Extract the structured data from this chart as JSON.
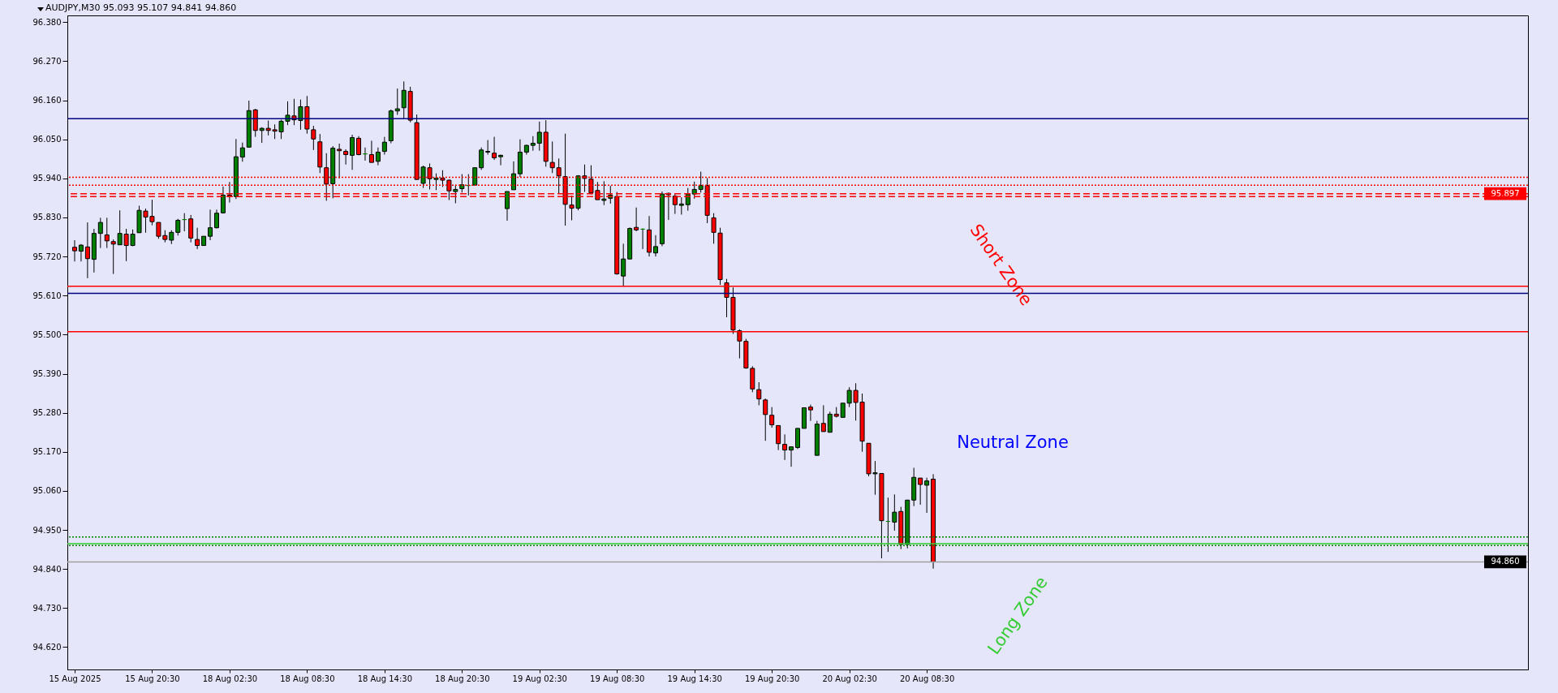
{
  "chart_data": {
    "type": "candlestick",
    "title": "AUDJPY,M30 95.093 95.107 94.841 94.860",
    "categories": [
      "15 Aug 2025",
      null,
      null,
      null,
      null,
      null,
      null,
      null,
      null,
      null,
      null,
      null,
      "15 Aug 20:30",
      null,
      null,
      null,
      null,
      null,
      null,
      null,
      null,
      null,
      null,
      null,
      "18 Aug 02:30",
      null,
      null,
      null,
      null,
      null,
      null,
      null,
      null,
      null,
      null,
      null,
      "18 Aug 08:30",
      null,
      null,
      null,
      null,
      null,
      null,
      null,
      null,
      null,
      null,
      null,
      "18 Aug 14:30",
      null,
      null,
      null,
      null,
      null,
      null,
      null,
      null,
      null,
      null,
      null,
      "18 Aug 20:30",
      null,
      null,
      null,
      null,
      null,
      null,
      null,
      null,
      null,
      null,
      null,
      "19 Aug 02:30",
      null,
      null,
      null,
      null,
      null,
      null,
      null,
      null,
      null,
      null,
      null,
      "19 Aug 08:30",
      null,
      null,
      null,
      null,
      null,
      null,
      null,
      null,
      null,
      null,
      null,
      "19 Aug 14:30",
      null,
      null,
      null,
      null,
      null,
      null,
      null,
      null,
      null,
      null,
      null,
      "19 Aug 20:30",
      null,
      null,
      null,
      null,
      null,
      null,
      null,
      null,
      null,
      null,
      null,
      "20 Aug 02:30",
      null,
      null,
      null,
      null,
      null,
      null,
      null,
      null,
      null,
      null,
      null,
      "20 Aug 08:30",
      null
    ],
    "ohlc": [
      [
        95.746,
        95.766,
        95.706,
        95.736
      ],
      [
        95.735,
        95.755,
        95.706,
        95.752
      ],
      [
        95.747,
        95.816,
        95.659,
        95.714
      ],
      [
        95.712,
        95.798,
        95.675,
        95.785
      ],
      [
        95.785,
        95.829,
        95.744,
        95.816
      ],
      [
        95.781,
        95.829,
        95.744,
        95.764
      ],
      [
        95.762,
        95.768,
        95.671,
        95.755
      ],
      [
        95.753,
        95.85,
        95.753,
        95.785
      ],
      [
        95.783,
        95.798,
        95.707,
        95.751
      ],
      [
        95.751,
        95.796,
        95.749,
        95.783
      ],
      [
        95.787,
        95.863,
        95.787,
        95.85
      ],
      [
        95.848,
        95.855,
        95.787,
        95.831
      ],
      [
        95.833,
        95.88,
        95.808,
        95.818
      ],
      [
        95.816,
        95.816,
        95.77,
        95.777
      ],
      [
        95.779,
        95.794,
        95.76,
        95.768
      ],
      [
        95.766,
        95.794,
        95.755,
        95.788
      ],
      [
        95.788,
        95.826,
        95.779,
        95.822
      ],
      [
        95.824,
        95.842,
        95.791,
        95.824
      ],
      [
        95.826,
        95.837,
        95.76,
        95.772
      ],
      [
        95.768,
        95.801,
        95.741,
        95.751
      ],
      [
        95.751,
        95.777,
        95.751,
        95.777
      ],
      [
        95.777,
        95.852,
        95.766,
        95.801
      ],
      [
        95.801,
        95.852,
        95.799,
        95.842
      ],
      [
        95.843,
        95.917,
        95.841,
        95.893
      ],
      [
        95.893,
        95.93,
        95.872,
        95.889
      ],
      [
        95.889,
        96.051,
        95.882,
        96.001
      ],
      [
        96.0,
        96.041,
        95.987,
        96.026
      ],
      [
        96.028,
        96.159,
        96.028,
        96.131
      ],
      [
        96.133,
        96.136,
        96.057,
        96.075
      ],
      [
        96.075,
        96.084,
        96.04,
        96.081
      ],
      [
        96.081,
        96.103,
        96.061,
        96.075
      ],
      [
        96.077,
        96.092,
        96.051,
        96.073
      ],
      [
        96.071,
        96.105,
        96.051,
        96.101
      ],
      [
        96.101,
        96.157,
        96.09,
        96.118
      ],
      [
        96.116,
        96.164,
        96.09,
        96.105
      ],
      [
        96.103,
        96.162,
        96.077,
        96.142
      ],
      [
        96.142,
        96.172,
        96.066,
        96.079
      ],
      [
        96.077,
        96.088,
        96.02,
        96.051
      ],
      [
        96.043,
        96.065,
        95.955,
        95.972
      ],
      [
        95.97,
        96.011,
        95.877,
        95.924
      ],
      [
        95.925,
        96.031,
        95.884,
        96.025
      ],
      [
        96.022,
        96.038,
        95.94,
        96.018
      ],
      [
        96.016,
        96.022,
        95.979,
        96.007
      ],
      [
        96.005,
        96.063,
        95.964,
        96.055
      ],
      [
        96.053,
        96.059,
        96.005,
        96.007
      ],
      [
        96.009,
        96.027,
        95.99,
        96.009
      ],
      [
        96.007,
        96.046,
        95.985,
        95.985
      ],
      [
        95.988,
        96.027,
        95.977,
        96.014
      ],
      [
        96.016,
        96.057,
        96.007,
        96.042
      ],
      [
        96.046,
        96.134,
        96.039,
        96.13
      ],
      [
        96.13,
        96.193,
        96.119,
        96.136
      ],
      [
        96.139,
        96.213,
        96.108,
        96.188
      ],
      [
        96.185,
        96.198,
        96.098,
        96.104
      ],
      [
        96.097,
        96.12,
        95.937,
        95.937
      ],
      [
        95.926,
        95.976,
        95.913,
        95.972
      ],
      [
        95.97,
        95.982,
        95.909,
        95.939
      ],
      [
        95.937,
        95.954,
        95.907,
        95.941
      ],
      [
        95.941,
        95.963,
        95.916,
        95.935
      ],
      [
        95.935,
        95.937,
        95.879,
        95.905
      ],
      [
        95.903,
        95.922,
        95.87,
        95.909
      ],
      [
        95.911,
        95.952,
        95.9,
        95.922
      ],
      [
        95.92,
        95.952,
        95.892,
        95.92
      ],
      [
        95.921,
        95.97,
        95.921,
        95.97
      ],
      [
        95.97,
        96.027,
        95.964,
        96.02
      ],
      [
        96.014,
        96.048,
        96.007,
        96.016
      ],
      [
        96.011,
        96.057,
        95.992,
        95.998
      ],
      [
        96.001,
        96.007,
        95.977,
        96.005
      ],
      [
        95.855,
        95.903,
        95.821,
        95.903
      ],
      [
        95.908,
        95.988,
        95.908,
        95.953
      ],
      [
        95.953,
        96.05,
        95.944,
        96.014
      ],
      [
        96.014,
        96.035,
        96.007,
        96.033
      ],
      [
        96.033,
        96.059,
        96.018,
        96.039
      ],
      [
        96.039,
        96.1,
        96.018,
        96.07
      ],
      [
        96.07,
        96.104,
        95.973,
        95.988
      ],
      [
        95.985,
        96.044,
        95.955,
        95.97
      ],
      [
        95.97,
        95.996,
        95.897,
        95.947
      ],
      [
        95.945,
        96.066,
        95.807,
        95.867
      ],
      [
        95.865,
        95.891,
        95.822,
        95.856
      ],
      [
        95.856,
        95.949,
        95.85,
        95.947
      ],
      [
        95.947,
        95.979,
        95.902,
        95.94
      ],
      [
        95.938,
        95.977,
        95.895,
        95.899
      ],
      [
        95.906,
        95.93,
        95.88,
        95.88
      ],
      [
        95.878,
        95.932,
        95.865,
        95.882
      ],
      [
        95.884,
        95.919,
        95.869,
        95.893
      ],
      [
        95.889,
        95.902,
        95.669,
        95.671
      ],
      [
        95.665,
        95.756,
        95.635,
        95.713
      ],
      [
        95.713,
        95.802,
        95.713,
        95.799
      ],
      [
        95.802,
        95.858,
        95.791,
        95.795
      ],
      [
        95.797,
        95.799,
        95.741,
        95.797
      ],
      [
        95.795,
        95.834,
        95.72,
        95.732
      ],
      [
        95.73,
        95.78,
        95.72,
        95.748
      ],
      [
        95.756,
        95.903,
        95.749,
        95.896
      ],
      [
        95.898,
        95.9,
        95.823,
        95.894
      ],
      [
        95.89,
        95.898,
        95.84,
        95.866
      ],
      [
        95.864,
        95.887,
        95.838,
        95.868
      ],
      [
        95.866,
        95.913,
        95.849,
        95.896
      ],
      [
        95.896,
        95.931,
        95.883,
        95.909
      ],
      [
        95.909,
        95.959,
        95.9,
        95.92
      ],
      [
        95.92,
        95.941,
        95.814,
        95.836
      ],
      [
        95.829,
        95.842,
        95.756,
        95.788
      ],
      [
        95.786,
        95.801,
        95.64,
        95.655
      ],
      [
        95.646,
        95.657,
        95.549,
        95.605
      ],
      [
        95.605,
        95.633,
        95.502,
        95.513
      ],
      [
        95.511,
        95.515,
        95.433,
        95.482
      ],
      [
        95.481,
        95.488,
        95.404,
        95.406
      ],
      [
        95.405,
        95.411,
        95.338,
        95.347
      ],
      [
        95.345,
        95.366,
        95.301,
        95.319
      ],
      [
        95.316,
        95.32,
        95.201,
        95.275
      ],
      [
        95.273,
        95.296,
        95.238,
        95.246
      ],
      [
        95.244,
        95.244,
        95.175,
        95.193
      ],
      [
        95.191,
        95.219,
        95.147,
        95.175
      ],
      [
        95.175,
        95.184,
        95.128,
        95.184
      ],
      [
        95.182,
        95.236,
        95.178,
        95.236
      ],
      [
        95.236,
        95.294,
        95.236,
        95.294
      ],
      [
        95.296,
        95.303,
        95.257,
        95.288
      ],
      [
        95.16,
        95.257,
        95.16,
        95.248
      ],
      [
        95.25,
        95.301,
        95.227,
        95.227
      ],
      [
        95.225,
        95.283,
        95.225,
        95.276
      ],
      [
        95.276,
        95.296,
        95.267,
        95.27
      ],
      [
        95.267,
        95.307,
        95.267,
        95.307
      ],
      [
        95.307,
        95.352,
        95.296,
        95.343
      ],
      [
        95.343,
        95.363,
        95.258,
        95.309
      ],
      [
        95.31,
        95.334,
        95.17,
        95.2
      ],
      [
        95.194,
        95.194,
        95.101,
        95.108
      ],
      [
        95.108,
        95.144,
        95.049,
        95.111
      ],
      [
        95.109,
        95.109,
        94.87,
        94.976
      ],
      [
        94.974,
        95.041,
        94.888,
        94.974
      ],
      [
        94.972,
        95.05,
        94.948,
        95.0
      ],
      [
        95.002,
        95.015,
        94.896,
        94.909
      ],
      [
        94.909,
        95.034,
        94.898,
        95.034
      ],
      [
        95.034,
        95.125,
        95.017,
        95.098
      ],
      [
        95.096,
        95.096,
        95.021,
        95.078
      ],
      [
        95.076,
        95.097,
        94.998,
        95.088
      ],
      [
        95.093,
        95.107,
        94.841,
        94.86
      ]
    ],
    "colors": [
      "#ff0000",
      "#008000",
      "#ff0000",
      "#008000",
      "#008000",
      "#ff0000",
      "#ff0000",
      "#008000",
      "#ff0000",
      "#008000",
      "#008000",
      "#ff0000",
      "#ff0000",
      "#ff0000",
      "#ff0000",
      "#008000",
      "#008000",
      "#008000",
      "#ff0000",
      "#ff0000",
      "#008000",
      "#008000",
      "#008000",
      "#008000",
      "#ff0000",
      "#008000",
      "#008000",
      "#008000",
      "#ff0000",
      "#008000",
      "#ff0000",
      "#ff0000",
      "#008000",
      "#008000",
      "#ff0000",
      "#008000",
      "#ff0000",
      "#ff0000",
      "#ff0000",
      "#ff0000",
      "#008000",
      "#ff0000",
      "#ff0000",
      "#008000",
      "#ff0000",
      "#008000",
      "#ff0000",
      "#008000",
      "#008000",
      "#008000",
      "#008000",
      "#008000",
      "#ff0000",
      "#ff0000",
      "#008000",
      "#ff0000",
      "#008000",
      "#ff0000",
      "#ff0000",
      "#008000",
      "#008000",
      "#008000",
      "#008000",
      "#008000",
      "#008000",
      "#ff0000",
      "#008000",
      "#008000",
      "#008000",
      "#008000",
      "#008000",
      "#008000",
      "#008000",
      "#ff0000",
      "#ff0000",
      "#ff0000",
      "#ff0000",
      "#ff0000",
      "#008000",
      "#ff0000",
      "#ff0000",
      "#ff0000",
      "#008000",
      "#008000",
      "#ff0000",
      "#008000",
      "#008000",
      "#ff0000",
      "#008000",
      "#ff0000",
      "#008000",
      "#008000",
      "#ff0000",
      "#ff0000",
      "#008000",
      "#008000",
      "#008000",
      "#008000",
      "#ff0000",
      "#ff0000",
      "#ff0000",
      "#ff0000",
      "#ff0000",
      "#ff0000",
      "#ff0000",
      "#ff0000",
      "#ff0000",
      "#ff0000",
      "#ff0000",
      "#ff0000",
      "#ff0000",
      "#008000",
      "#008000",
      "#008000",
      "#ff0000",
      "#008000",
      "#ff0000",
      "#008000",
      "#ff0000",
      "#008000",
      "#008000",
      "#ff0000",
      "#ff0000",
      "#ff0000",
      "#008000",
      "#ff0000",
      "#008000",
      "#008000",
      "#ff0000",
      "#008000",
      "#008000",
      "#ff0000",
      "#008000",
      "#ff0000"
    ],
    "ylim": [
      94.557,
      96.399
    ],
    "yticks": [
      {
        "value": 94.62,
        "label": "94.620"
      },
      {
        "value": 94.73,
        "label": "94.730"
      },
      {
        "value": 94.84,
        "label": "94.840"
      },
      {
        "value": 94.95,
        "label": "94.950"
      },
      {
        "value": 95.06,
        "label": "95.060"
      },
      {
        "value": 95.17,
        "label": "95.170"
      },
      {
        "value": 95.28,
        "label": "95.280"
      },
      {
        "value": 95.39,
        "label": "95.390"
      },
      {
        "value": 95.5,
        "label": "95.500"
      },
      {
        "value": 95.61,
        "label": "95.610"
      },
      {
        "value": 95.72,
        "label": "95.720"
      },
      {
        "value": 95.83,
        "label": "95.830"
      },
      {
        "value": 95.94,
        "label": "95.940"
      },
      {
        "value": 96.05,
        "label": "96.050"
      },
      {
        "value": 96.16,
        "label": "96.160"
      },
      {
        "value": 96.27,
        "label": "96.270"
      },
      {
        "value": 96.38,
        "label": "96.380"
      }
    ],
    "ref_lines": [
      {
        "axis": "y",
        "value": 96.108,
        "color": "#000080",
        "line_style": "solid"
      },
      {
        "axis": "y",
        "value": 95.943,
        "color": "#ff0000",
        "line_style": "dotted"
      },
      {
        "axis": "y",
        "value": 95.921,
        "color": "#ff0000",
        "line_style": "dotted"
      },
      {
        "axis": "y",
        "value": 95.897,
        "label": "95.897",
        "color": "#ff0000",
        "line_style": "dashed"
      },
      {
        "axis": "y",
        "value": 95.889,
        "color": "#ff0000",
        "line_style": "dashed"
      },
      {
        "axis": "y",
        "value": 95.636,
        "color": "#ff0000",
        "line_style": "solid"
      },
      {
        "axis": "y",
        "value": 95.616,
        "color": "#000080",
        "line_style": "solid"
      },
      {
        "axis": "y",
        "value": 95.508,
        "color": "#ff0000",
        "line_style": "solid"
      },
      {
        "axis": "y",
        "value": 94.93,
        "color": "#008000",
        "line_style": "dotted"
      },
      {
        "axis": "y",
        "value": 94.911,
        "color": "#33cc33",
        "line_style": "solid"
      },
      {
        "axis": "y",
        "value": 94.906,
        "color": "#008000",
        "line_style": "dotted"
      },
      {
        "axis": "y",
        "value": 94.86,
        "label": "94.860",
        "color": "#a0a0a0",
        "line_style": "solid"
      }
    ],
    "annotations": [
      "Short Zone",
      "Neutral Zone",
      "Long Zone"
    ]
  }
}
